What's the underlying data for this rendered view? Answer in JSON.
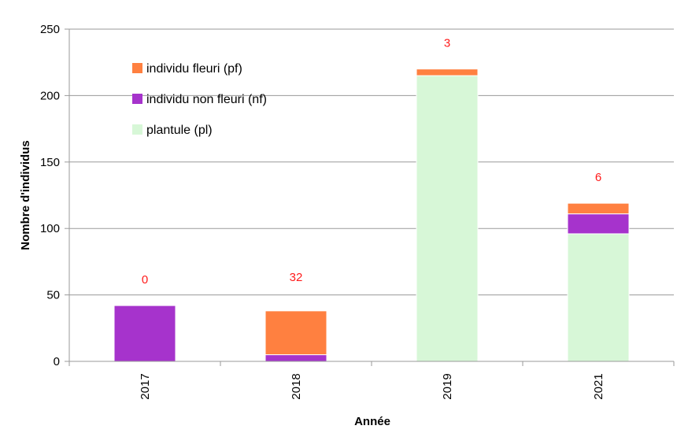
{
  "chart_data": {
    "type": "bar",
    "stacked": true,
    "categories": [
      "2017",
      "2018",
      "2019",
      "2021"
    ],
    "series": [
      {
        "name": "plantule (pl)",
        "color": "#d7f7d7",
        "values": [
          0,
          0,
          215,
          96
        ]
      },
      {
        "name": "individu non fleuri (nf)",
        "color": "#a633cc",
        "values": [
          42,
          5,
          0,
          15
        ]
      },
      {
        "name": "individu fleuri (pf)",
        "color": "#ff8040",
        "values": [
          0,
          33,
          5,
          8
        ]
      }
    ],
    "data_labels": [
      "0",
      "32",
      "3",
      "6"
    ],
    "data_label_color": "#ff1a1a",
    "xlabel": "Année",
    "ylabel": "Nombre d'individus",
    "ylim": [
      0,
      250
    ],
    "yticks": [
      "0",
      "50",
      "100",
      "150",
      "200",
      "250"
    ],
    "grid": true,
    "legend_position": "top-left",
    "legend_order": [
      "individu fleuri (pf)",
      "individu non fleuri (nf)",
      "plantule (pl)"
    ]
  }
}
